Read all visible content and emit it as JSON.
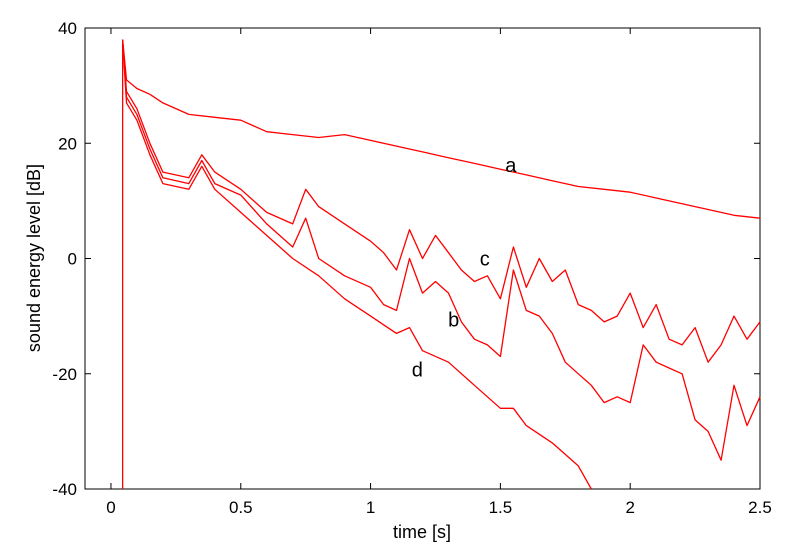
{
  "chart_data": {
    "type": "line",
    "title": "",
    "xlabel": "time  [s]",
    "ylabel": "sound energy level  [dB]",
    "xlim": [
      -0.1,
      2.5
    ],
    "ylim": [
      -40,
      40
    ],
    "xticks": [
      0,
      0.5,
      1,
      1.5,
      2,
      2.5
    ],
    "xtick_labels": [
      "0",
      "0.5",
      "1",
      "1.5",
      "2",
      "2.5"
    ],
    "yticks": [
      -40,
      -20,
      0,
      20,
      40
    ],
    "ytick_labels": [
      "-40",
      "-20",
      "0",
      "20",
      "40"
    ],
    "grid": false,
    "line_color": "#ff0000",
    "onset": {
      "x": 0.045,
      "y": [
        -40,
        38
      ]
    },
    "series": [
      {
        "name": "a",
        "x": [
          0.045,
          0.06,
          0.1,
          0.15,
          0.2,
          0.3,
          0.4,
          0.5,
          0.6,
          0.7,
          0.8,
          0.9,
          1.0,
          1.1,
          1.2,
          1.3,
          1.4,
          1.5,
          1.6,
          1.7,
          1.8,
          1.9,
          2.0,
          2.1,
          2.2,
          2.3,
          2.4,
          2.5
        ],
        "y": [
          38,
          31,
          29.5,
          28.5,
          27,
          25,
          24.5,
          24,
          22,
          21.5,
          21,
          21.5,
          20.5,
          19.5,
          18.5,
          17.5,
          16.5,
          15.5,
          14.5,
          13.5,
          12.5,
          12,
          11.5,
          10.5,
          9.5,
          8.5,
          7.5,
          7
        ]
      },
      {
        "name": "b",
        "x": [
          0.045,
          0.06,
          0.1,
          0.15,
          0.2,
          0.3,
          0.35,
          0.4,
          0.5,
          0.6,
          0.7,
          0.75,
          0.8,
          0.9,
          1.0,
          1.05,
          1.1,
          1.15,
          1.2,
          1.25,
          1.3,
          1.35,
          1.4,
          1.45,
          1.5,
          1.55,
          1.6,
          1.65,
          1.7,
          1.75,
          1.8,
          1.85,
          1.9,
          1.95,
          2.0,
          2.05,
          2.1,
          2.15,
          2.2,
          2.25,
          2.3,
          2.35,
          2.4,
          2.45,
          2.5
        ],
        "y": [
          38,
          28,
          25,
          19,
          14,
          13,
          17,
          13,
          11,
          6,
          2,
          7,
          0,
          -3,
          -5,
          -8,
          -9,
          0,
          -6,
          -4,
          -6,
          -11,
          -14,
          -15,
          -17,
          -2,
          -9,
          -10,
          -13,
          -18,
          -20,
          -22,
          -25,
          -24,
          -25,
          -15,
          -18,
          -19,
          -20,
          -28,
          -30,
          -35,
          -22,
          -29,
          -24
        ]
      },
      {
        "name": "c",
        "x": [
          0.045,
          0.06,
          0.1,
          0.15,
          0.2,
          0.3,
          0.35,
          0.4,
          0.5,
          0.6,
          0.7,
          0.75,
          0.8,
          0.9,
          1.0,
          1.05,
          1.1,
          1.15,
          1.2,
          1.25,
          1.3,
          1.35,
          1.4,
          1.45,
          1.5,
          1.55,
          1.6,
          1.65,
          1.7,
          1.75,
          1.8,
          1.85,
          1.9,
          1.95,
          2.0,
          2.05,
          2.1,
          2.15,
          2.2,
          2.25,
          2.3,
          2.35,
          2.4,
          2.45,
          2.5
        ],
        "y": [
          38,
          29,
          26,
          20,
          15,
          14,
          18,
          15,
          12,
          8,
          6,
          12,
          9,
          6,
          3,
          1,
          -2,
          5,
          0,
          4,
          1,
          -2,
          -4,
          -3,
          -7,
          2,
          -5,
          0,
          -4,
          -2,
          -8,
          -9,
          -11,
          -10,
          -6,
          -12,
          -8,
          -14,
          -15,
          -12,
          -18,
          -15,
          -10,
          -14,
          -11
        ]
      },
      {
        "name": "d",
        "x": [
          0.045,
          0.06,
          0.1,
          0.15,
          0.2,
          0.3,
          0.35,
          0.4,
          0.5,
          0.6,
          0.7,
          0.8,
          0.9,
          1.0,
          1.1,
          1.15,
          1.2,
          1.3,
          1.4,
          1.5,
          1.55,
          1.6,
          1.7,
          1.8,
          1.85
        ],
        "y": [
          38,
          27,
          24,
          18,
          13,
          12,
          16,
          12,
          8,
          4,
          0,
          -3,
          -7,
          -10,
          -13,
          -12,
          -16,
          -18,
          -22,
          -26,
          -26,
          -29,
          -32,
          -36,
          -40
        ]
      }
    ],
    "annotations": [
      {
        "text": "a",
        "x": 1.54,
        "y": 16.2
      },
      {
        "text": "b",
        "x": 1.32,
        "y": -10.6
      },
      {
        "text": "c",
        "x": 1.44,
        "y": 0
      },
      {
        "text": "d",
        "x": 1.18,
        "y": -19.3
      }
    ]
  }
}
